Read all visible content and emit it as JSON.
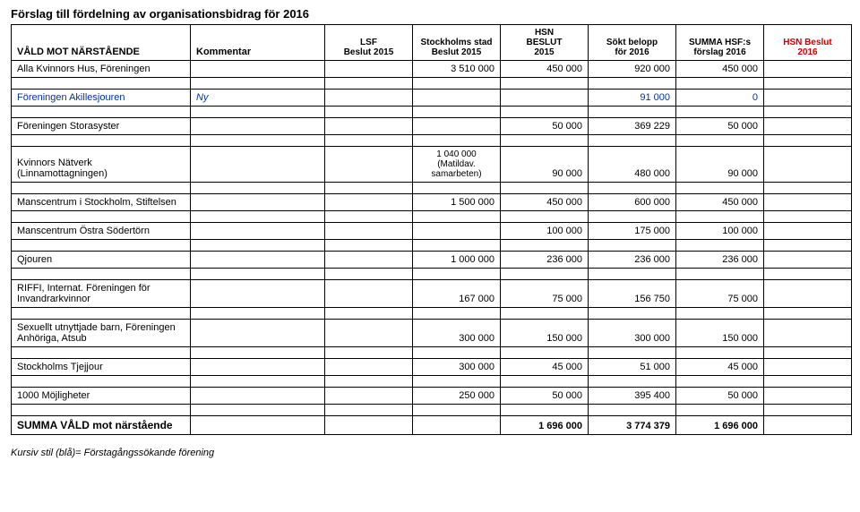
{
  "title": "Förslag till fördelning av organisationsbidrag för 2016",
  "columns": {
    "c0": "VÅLD MOT NÄRSTÅENDE",
    "c1": "Kommentar",
    "c2": "LSF\nBeslut 2015",
    "c3": "Stockholms stad\nBeslut 2015",
    "c4": "HSN\nBESLUT\n2015",
    "c5": "Sökt belopp\nför 2016",
    "c6": "SUMMA HSF:s\nförslag 2016",
    "c7": "HSN Beslut\n2016"
  },
  "rows": [
    {
      "name": "Alla Kvinnors Hus, Föreningen",
      "comment": "",
      "v": [
        "",
        "3 510 000",
        "450 000",
        "920 000",
        "450 000",
        ""
      ],
      "blue": false
    },
    {
      "name": "Föreningen Akillesjouren",
      "comment": "Ny",
      "v": [
        "",
        "",
        "",
        "91 000",
        "0",
        ""
      ],
      "blue": true
    },
    {
      "name": "Föreningen Storasyster",
      "comment": "",
      "v": [
        "",
        "",
        "50 000",
        "369 229",
        "50 000",
        ""
      ],
      "blue": false
    },
    {
      "name": "Kvinnors Nätverk (Linnamottagningen)",
      "comment": "",
      "v": [
        "",
        "1 040 000\n(Matildav.\nsamarbeten)",
        "90 000",
        "480 000",
        "90 000",
        ""
      ],
      "blue": false
    },
    {
      "name": "Manscentrum i Stockholm, Stiftelsen",
      "comment": "",
      "v": [
        "",
        "1 500 000",
        "450 000",
        "600 000",
        "450 000",
        ""
      ],
      "blue": false
    },
    {
      "name": "Manscentrum Östra Södertörn",
      "comment": "",
      "v": [
        "",
        "",
        "100 000",
        "175 000",
        "100 000",
        ""
      ],
      "blue": false
    },
    {
      "name": "Qjouren",
      "comment": "",
      "v": [
        "",
        "1 000 000",
        "236 000",
        "236 000",
        "236 000",
        ""
      ],
      "blue": false
    },
    {
      "name": "RIFFI, Internat. Föreningen för Invandrarkvinnor",
      "comment": "",
      "v": [
        "",
        "167 000",
        "75 000",
        "156 750",
        "75 000",
        ""
      ],
      "blue": false
    },
    {
      "name": "Sexuellt utnyttjade barn, Föreningen Anhöriga, Atsub",
      "comment": "",
      "v": [
        "",
        "300 000",
        "150 000",
        "300 000",
        "150 000",
        ""
      ],
      "blue": false
    },
    {
      "name": "Stockholms Tjejjour",
      "comment": "",
      "v": [
        "",
        "300 000",
        "45 000",
        "51 000",
        "45 000",
        ""
      ],
      "blue": false
    },
    {
      "name": "1000 Möjligheter",
      "comment": "",
      "v": [
        "",
        "250 000",
        "50 000",
        "395 400",
        "50 000",
        ""
      ],
      "blue": false
    }
  ],
  "sum": {
    "name": "SUMMA VÅLD mot närstående",
    "v": [
      "",
      "",
      "1 696 000",
      "3 774 379",
      "1 696 000",
      ""
    ]
  },
  "spacer_after": [
    0,
    1,
    2,
    3,
    4,
    5,
    6,
    7,
    8,
    9,
    10
  ],
  "footer": "Kursiv stil (blå)= Förstagångssökande förening"
}
